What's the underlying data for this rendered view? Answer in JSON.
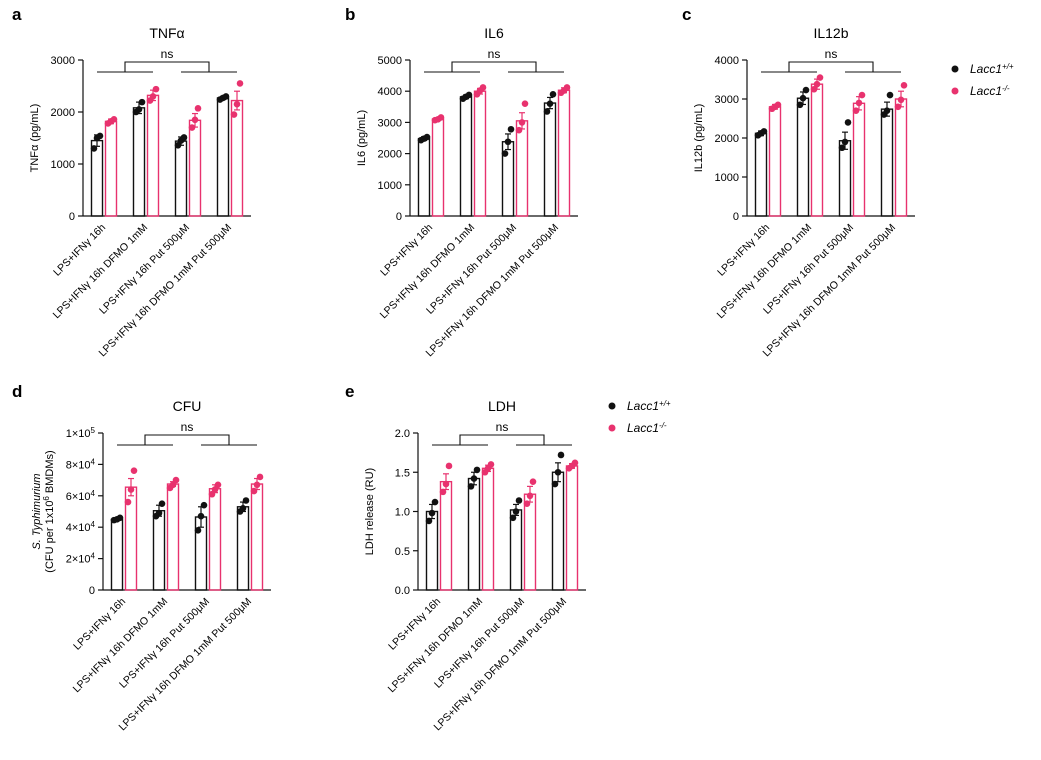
{
  "colors": {
    "wt": "#111111",
    "ko": "#e8326e",
    "axis": "#111111"
  },
  "legend": [
    {
      "name": "Lacc1",
      "sup": "+/+",
      "color": "#111111"
    },
    {
      "name": "Lacc1",
      "sup": "-/-",
      "color": "#e8326e"
    }
  ],
  "chart_data": [
    {
      "panel": "a",
      "type": "bar",
      "title": "TNFα",
      "ylabel": "TNFα (pg/mL)",
      "ylim": [
        0,
        3000
      ],
      "yticks": [
        0,
        1000,
        2000,
        3000
      ],
      "ytick_labels": [
        "0",
        "1000",
        "2000",
        "3000"
      ],
      "categories": [
        "LPS+IFNγ 16h",
        "LPS+IFNγ 16h DFMO 1mM",
        "LPS+IFNγ 16h Put 500μM",
        "LPS+IFNγ 16h DFMO 1mM Put 500μM"
      ],
      "series": [
        {
          "name": "Lacc1+/+",
          "values": [
            1450,
            2080,
            1440,
            2270
          ],
          "sem": [
            110,
            110,
            80,
            30
          ],
          "points": [
            [
              1300,
              1500,
              1540
            ],
            [
              2000,
              2050,
              2190
            ],
            [
              1360,
              1450,
              1510
            ],
            [
              2240,
              2270,
              2300
            ]
          ]
        },
        {
          "name": "Lacc1-/-",
          "values": [
            1820,
            2320,
            1840,
            2220
          ],
          "sem": [
            45,
            100,
            130,
            180
          ],
          "points": [
            [
              1780,
              1820,
              1860
            ],
            [
              2220,
              2300,
              2440
            ],
            [
              1700,
              1850,
              2070
            ],
            [
              1950,
              2150,
              2550
            ]
          ]
        }
      ],
      "significance": "ns"
    },
    {
      "panel": "b",
      "type": "bar",
      "title": "IL6",
      "ylabel": "IL6 (pg/mL)",
      "ylim": [
        0,
        5000
      ],
      "yticks": [
        0,
        1000,
        2000,
        3000,
        4000,
        5000
      ],
      "ytick_labels": [
        "0",
        "1000",
        "2000",
        "3000",
        "4000",
        "5000"
      ],
      "categories": [
        "LPS+IFNγ 16h",
        "LPS+IFNγ 16h DFMO 1mM",
        "LPS+IFNγ 16h Put 500μM",
        "LPS+IFNγ 16h DFMO 1mM Put 500μM"
      ],
      "series": [
        {
          "name": "Lacc1+/+",
          "values": [
            2480,
            3820,
            2380,
            3620
          ],
          "sem": [
            60,
            60,
            250,
            180
          ],
          "points": [
            [
              2430,
              2480,
              2530
            ],
            [
              3760,
              3820,
              3880
            ],
            [
              2000,
              2380,
              2780
            ],
            [
              3350,
              3600,
              3900
            ]
          ]
        },
        {
          "name": "Lacc1-/-",
          "values": [
            3110,
            4000,
            3050,
            4030
          ],
          "sem": [
            40,
            90,
            260,
            80
          ],
          "points": [
            [
              3070,
              3100,
              3160
            ],
            [
              3900,
              4020,
              4120
            ],
            [
              2750,
              3000,
              3600
            ],
            [
              3950,
              4020,
              4120
            ]
          ]
        }
      ],
      "significance": "ns"
    },
    {
      "panel": "c",
      "type": "bar",
      "title": "IL12b",
      "ylabel": "IL12b (pg/mL)",
      "ylim": [
        0,
        4000
      ],
      "yticks": [
        0,
        1000,
        2000,
        3000,
        4000
      ],
      "ytick_labels": [
        "0",
        "1000",
        "2000",
        "3000",
        "4000"
      ],
      "categories": [
        "LPS+IFNγ 16h",
        "LPS+IFNγ 16h DFMO 1mM",
        "LPS+IFNγ 16h Put 500μM",
        "LPS+IFNγ 16h DFMO 1mM Put 500μM"
      ],
      "series": [
        {
          "name": "Lacc1+/+",
          "values": [
            2120,
            3020,
            1930,
            2740
          ],
          "sem": [
            60,
            160,
            220,
            180
          ],
          "points": [
            [
              2070,
              2120,
              2170
            ],
            [
              2850,
              3020,
              3230
            ],
            [
              1750,
              1900,
              2400
            ],
            [
              2600,
              2700,
              3100
            ]
          ]
        },
        {
          "name": "Lacc1-/-",
          "values": [
            2800,
            3380,
            2890,
            3000
          ],
          "sem": [
            60,
            130,
            170,
            200
          ],
          "points": [
            [
              2750,
              2800,
              2850
            ],
            [
              3250,
              3380,
              3550
            ],
            [
              2700,
              2900,
              3100
            ],
            [
              2800,
              2980,
              3350
            ]
          ]
        }
      ],
      "significance": "ns"
    },
    {
      "panel": "d",
      "type": "bar",
      "title": "CFU",
      "ylabel_lines": [
        "S. Typhimurium",
        "(CFU per 1x10^6 BMDMs)"
      ],
      "ylim": [
        0,
        100000
      ],
      "yticks": [
        0,
        20000,
        40000,
        60000,
        80000,
        100000
      ],
      "ytick_labels": [
        "0",
        "2×10^4",
        "4×10^4",
        "6×10^4",
        "8×10^4",
        "1×10^5"
      ],
      "categories": [
        "LPS+IFNγ 16h",
        "LPS+IFNγ 16h DFMO 1mM",
        "LPS+IFNγ 16h Put 500μM",
        "LPS+IFNγ 16h DFMO 1mM Put 500μM"
      ],
      "series": [
        {
          "name": "Lacc1+/+",
          "values": [
            45000,
            50500,
            46500,
            53000
          ],
          "sem": [
            800,
            3500,
            6500,
            3000
          ],
          "points": [
            [
              44500,
              45000,
              46000
            ],
            [
              47000,
              49000,
              55000
            ],
            [
              38000,
              47000,
              54000
            ],
            [
              50000,
              52000,
              57000
            ]
          ]
        },
        {
          "name": "Lacc1-/-",
          "values": [
            65500,
            67500,
            64500,
            67500
          ],
          "sem": [
            5500,
            1500,
            2500,
            3500
          ],
          "points": [
            [
              56000,
              64000,
              76000
            ],
            [
              65000,
              67000,
              70000
            ],
            [
              61000,
              64000,
              67000
            ],
            [
              63000,
              67000,
              72000
            ]
          ]
        }
      ],
      "significance": "ns"
    },
    {
      "panel": "e",
      "type": "bar",
      "title": "LDH",
      "ylabel": "LDH release (RU)",
      "ylim": [
        0,
        2.0
      ],
      "yticks": [
        0,
        0.5,
        1.0,
        1.5,
        2.0
      ],
      "ytick_labels": [
        "0.0",
        "0.5",
        "1.0",
        "1.5",
        "2.0"
      ],
      "categories": [
        "LPS+IFNγ 16h",
        "LPS+IFNγ 16h DFMO 1mM",
        "LPS+IFNγ 16h Put 500μM",
        "LPS+IFNγ 16h DFMO 1mM Put 500μM"
      ],
      "series": [
        {
          "name": "Lacc1+/+",
          "values": [
            1.0,
            1.42,
            1.02,
            1.5
          ],
          "sem": [
            0.09,
            0.08,
            0.07,
            0.12
          ],
          "points": [
            [
              0.88,
              0.98,
              1.12
            ],
            [
              1.32,
              1.42,
              1.53
            ],
            [
              0.92,
              1.0,
              1.14
            ],
            [
              1.35,
              1.5,
              1.72
            ]
          ]
        },
        {
          "name": "Lacc1-/-",
          "values": [
            1.38,
            1.55,
            1.22,
            1.58
          ],
          "sem": [
            0.1,
            0.04,
            0.1,
            0.03
          ],
          "points": [
            [
              1.25,
              1.35,
              1.58
            ],
            [
              1.5,
              1.55,
              1.6
            ],
            [
              1.1,
              1.2,
              1.38
            ],
            [
              1.55,
              1.58,
              1.62
            ]
          ]
        }
      ],
      "significance": "ns"
    }
  ]
}
